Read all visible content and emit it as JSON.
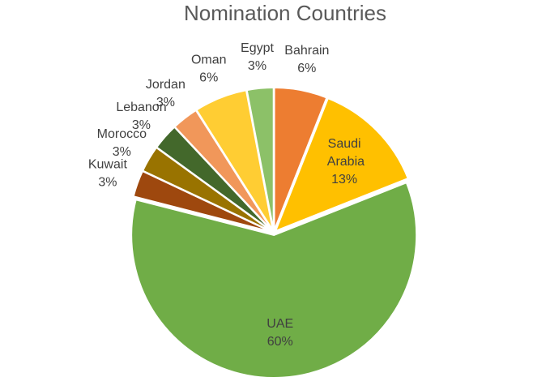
{
  "chart_data": {
    "type": "pie",
    "title": "Nomination Countries",
    "categories": [
      "Bahrain",
      "Saudi Arabia",
      "UAE",
      "Kuwait",
      "Morocco",
      "Lebanon",
      "Jordan",
      "Oman",
      "Egypt"
    ],
    "values": [
      6,
      13,
      60,
      3,
      3,
      3,
      3,
      6,
      3
    ],
    "value_labels": [
      "6%",
      "13%",
      "60%",
      "3%",
      "3%",
      "3%",
      "3%",
      "6%",
      "3%"
    ],
    "colors": [
      "#ED7D31",
      "#FFC000",
      "#70AD47",
      "#9E480E",
      "#997300",
      "#43682B",
      "#F1975A",
      "#FFCD33",
      "#8CC168"
    ]
  }
}
